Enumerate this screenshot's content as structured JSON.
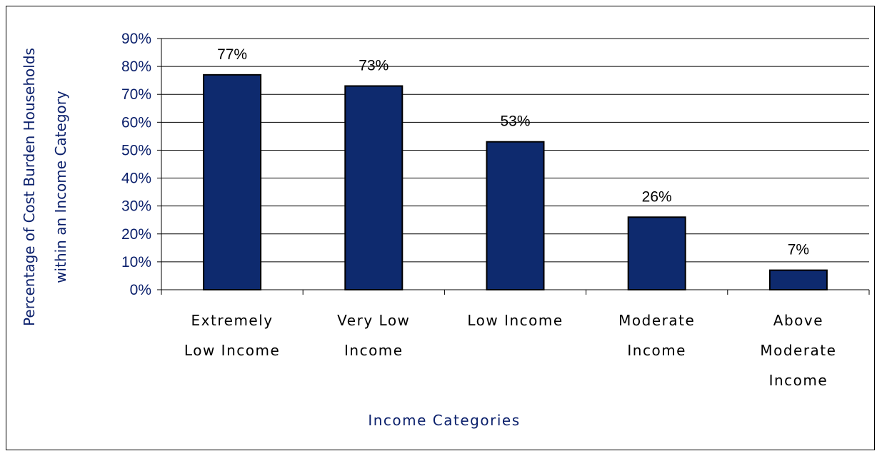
{
  "chart_data": {
    "type": "bar",
    "categories": [
      [
        "Extremely",
        "Low Income"
      ],
      [
        "Very Low",
        "Income"
      ],
      [
        "Low Income"
      ],
      [
        "Moderate",
        "Income"
      ],
      [
        "Above",
        "Moderate",
        "Income"
      ]
    ],
    "values": [
      77,
      73,
      53,
      26,
      7
    ],
    "data_labels": [
      "77%",
      "73%",
      "53%",
      "26%",
      "7%"
    ],
    "xlabel": "Income Categories",
    "ylabel": [
      "Percentage of Cost Burden Households",
      "within an Income Category"
    ],
    "ylim": [
      0,
      90
    ],
    "yticks": [
      0,
      10,
      20,
      30,
      40,
      50,
      60,
      70,
      80,
      90
    ],
    "ytick_labels": [
      "0%",
      "10%",
      "20%",
      "30%",
      "40%",
      "50%",
      "60%",
      "70%",
      "80%",
      "90%"
    ],
    "grid": true,
    "legend": "none",
    "colors": {
      "bar": "#0e2a6e",
      "text": "#0a1f6b"
    }
  }
}
